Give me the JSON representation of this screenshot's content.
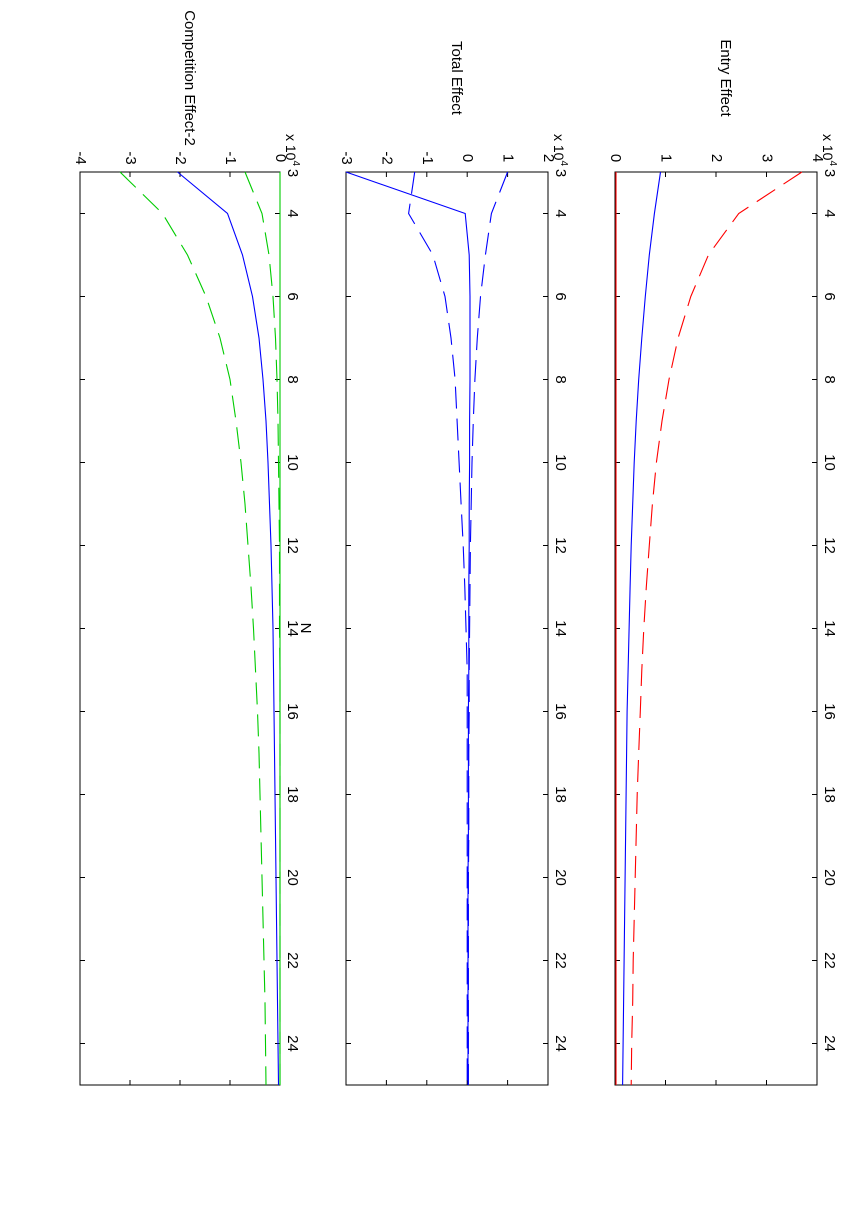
{
  "chart_data": [
    {
      "type": "line",
      "ylabel": "Entry Effect",
      "xlabel": "N",
      "x_ticks": [
        4,
        6,
        8,
        10,
        12,
        14,
        16,
        18,
        20,
        22,
        24
      ],
      "xlim": [
        3,
        25
      ],
      "y_ticks": [
        0,
        1,
        2,
        3,
        4
      ],
      "ylim": [
        0,
        4
      ],
      "y_scale_label": "x 10",
      "y_scale_exp": "4",
      "grid": false,
      "x": [
        3,
        4,
        5,
        6,
        7,
        8,
        9,
        10,
        11,
        12,
        13,
        14,
        15,
        16,
        17,
        18,
        19,
        20,
        21,
        22,
        23,
        24,
        25
      ],
      "series": [
        {
          "color": "#ff0000",
          "dash": "dashed",
          "values": [
            3.7,
            2.45,
            1.85,
            1.5,
            1.25,
            1.07,
            0.93,
            0.82,
            0.74,
            0.68,
            0.62,
            0.57,
            0.53,
            0.5,
            0.47,
            0.44,
            0.42,
            0.4,
            0.38,
            0.36,
            0.35,
            0.33,
            0.32
          ]
        },
        {
          "color": "#0000ff",
          "dash": "solid",
          "values": [
            0.9,
            0.78,
            0.68,
            0.6,
            0.53,
            0.47,
            0.42,
            0.38,
            0.35,
            0.32,
            0.3,
            0.28,
            0.26,
            0.24,
            0.23,
            0.22,
            0.21,
            0.2,
            0.19,
            0.18,
            0.17,
            0.16,
            0.15
          ]
        },
        {
          "color": "#ff0000",
          "dash": "solid",
          "values": [
            0.02,
            0.02,
            0.02,
            0.02,
            0.02,
            0.02,
            0.02,
            0.02,
            0.02,
            0.02,
            0.02,
            0.02,
            0.02,
            0.02,
            0.02,
            0.02,
            0.02,
            0.02,
            0.02,
            0.02,
            0.02,
            0.02,
            0.02
          ]
        }
      ]
    },
    {
      "type": "line",
      "ylabel": "Total Effect",
      "xlabel": "N",
      "x_ticks": [
        4,
        6,
        8,
        10,
        12,
        14,
        16,
        18,
        20,
        22,
        24
      ],
      "xlim": [
        3,
        25
      ],
      "y_ticks": [
        -3,
        -2,
        -1,
        0,
        1,
        2
      ],
      "ylim": [
        -3,
        2
      ],
      "y_scale_label": "x 10",
      "y_scale_exp": "4",
      "grid": false,
      "x": [
        3,
        4,
        5,
        6,
        7,
        8,
        9,
        10,
        11,
        12,
        13,
        14,
        15,
        16,
        17,
        18,
        19,
        20,
        21,
        22,
        23,
        24,
        25
      ],
      "series": [
        {
          "color": "#0000ff",
          "dash": "dashed",
          "values": [
            1.0,
            0.6,
            0.45,
            0.33,
            0.25,
            0.19,
            0.15,
            0.12,
            0.1,
            0.08,
            0.07,
            0.06,
            0.05,
            0.05,
            0.04,
            0.04,
            0.04,
            0.03,
            0.03,
            0.03,
            0.03,
            0.03,
            0.03
          ]
        },
        {
          "color": "#0000ff",
          "dash": "dashed",
          "values": [
            -1.3,
            -1.45,
            -0.85,
            -0.55,
            -0.4,
            -0.3,
            -0.25,
            -0.2,
            -0.15,
            -0.1,
            -0.06,
            -0.03,
            0.0,
            0.0,
            0.0,
            0.0,
            0.0,
            0.0,
            0.0,
            0.0,
            0.0,
            0.0,
            0.0
          ]
        },
        {
          "color": "#0000ff",
          "dash": "solid",
          "values": [
            -3.0,
            -0.05,
            0.05,
            0.07,
            0.07,
            0.07,
            0.06,
            0.06,
            0.05,
            0.05,
            0.04,
            0.04,
            0.04,
            0.03,
            0.03,
            0.03,
            0.03,
            0.02,
            0.02,
            0.02,
            0.02,
            0.02,
            0.02
          ]
        }
      ]
    },
    {
      "type": "line",
      "ylabel": "Competition Effect-2",
      "xlabel": "N",
      "x_ticks": [
        4,
        6,
        8,
        10,
        12,
        14,
        16,
        18,
        20,
        22,
        24
      ],
      "xlim": [
        3,
        25
      ],
      "y_ticks": [
        -4,
        -3,
        -2,
        -1,
        0
      ],
      "ylim": [
        -4,
        0
      ],
      "y_scale_label": "x 10",
      "y_scale_exp": "4",
      "grid": false,
      "x": [
        3,
        4,
        5,
        6,
        7,
        8,
        9,
        10,
        11,
        12,
        13,
        14,
        15,
        16,
        17,
        18,
        19,
        20,
        21,
        22,
        23,
        24,
        25
      ],
      "series": [
        {
          "color": "#00cc00",
          "dash": "dashed",
          "values": [
            -3.2,
            -2.35,
            -1.85,
            -1.48,
            -1.2,
            -1.0,
            -0.88,
            -0.78,
            -0.7,
            -0.64,
            -0.58,
            -0.53,
            -0.49,
            -0.45,
            -0.42,
            -0.4,
            -0.38,
            -0.36,
            -0.34,
            -0.32,
            -0.3,
            -0.29,
            -0.28
          ]
        },
        {
          "color": "#0000ff",
          "dash": "solid",
          "values": [
            -2.05,
            -1.05,
            -0.75,
            -0.55,
            -0.42,
            -0.34,
            -0.28,
            -0.24,
            -0.21,
            -0.18,
            -0.16,
            -0.14,
            -0.13,
            -0.12,
            -0.11,
            -0.1,
            -0.09,
            -0.08,
            -0.07,
            -0.06,
            -0.05,
            -0.04,
            -0.03
          ]
        },
        {
          "color": "#00cc00",
          "dash": "dashed",
          "values": [
            -0.7,
            -0.36,
            -0.22,
            -0.14,
            -0.09,
            -0.06,
            -0.04,
            -0.03,
            -0.02,
            -0.01,
            -0.01,
            -0.01,
            0.0,
            0.0,
            0.0,
            0.0,
            0.0,
            0.0,
            0.0,
            0.0,
            0.0,
            0.0,
            0.0
          ]
        },
        {
          "color": "#00cc00",
          "dash": "solid",
          "values": [
            0.0,
            0.0,
            0.0,
            0.0,
            0.0,
            0.0,
            0.0,
            0.0,
            0.0,
            0.0,
            0.0,
            0.0,
            0.0,
            0.0,
            0.0,
            0.0,
            0.0,
            0.0,
            0.0,
            0.0,
            0.0,
            0.0,
            0.0
          ]
        }
      ]
    }
  ],
  "figure": {
    "shared_xlabel": "N",
    "orientation": "rotated-90-clockwise"
  }
}
